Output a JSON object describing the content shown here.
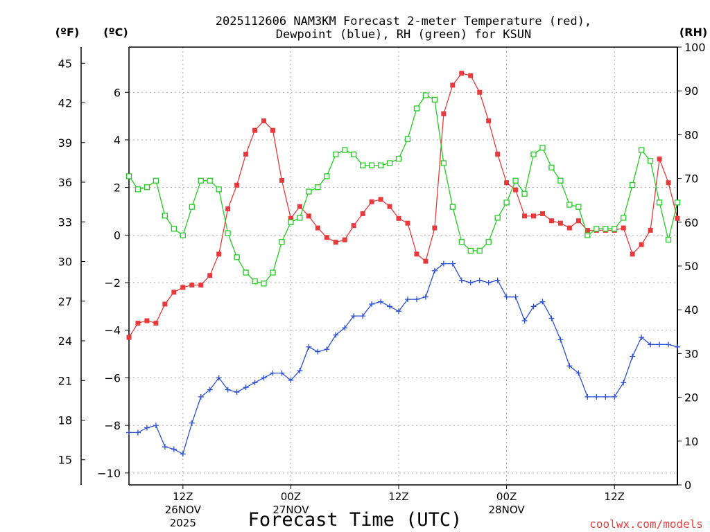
{
  "chart_data": {
    "type": "line",
    "title_line1": "2025112606 NAM3KM Forecast 2-meter Temperature (red),",
    "title_line2": "Dewpoint (blue), RH (green) for KSUN",
    "left_unit_f": "(ºF)",
    "left_unit_c": "(ºC)",
    "right_unit": "(RH)",
    "xlabel": "Forecast Time (UTC)",
    "credit": "coolwx.com/models",
    "x_range": [
      6,
      67
    ],
    "celsius_axis": {
      "ylim": [
        -10.5,
        7.9
      ],
      "ticks": [
        {
          "v": 6,
          "label": "6"
        },
        {
          "v": 4,
          "label": "4"
        },
        {
          "v": 2,
          "label": "2"
        },
        {
          "v": 0,
          "label": "0"
        },
        {
          "v": -2,
          "label": "−2"
        },
        {
          "v": -4,
          "label": "−4"
        },
        {
          "v": -6,
          "label": "−6"
        },
        {
          "v": -8,
          "label": "−8"
        },
        {
          "v": -10,
          "label": "−10"
        }
      ]
    },
    "fahrenheit_ticks": [
      {
        "v": 45,
        "label": "45"
      },
      {
        "v": 42,
        "label": "42"
      },
      {
        "v": 39,
        "label": "39"
      },
      {
        "v": 36,
        "label": "36"
      },
      {
        "v": 33,
        "label": "33"
      },
      {
        "v": 30,
        "label": "30"
      },
      {
        "v": 27,
        "label": "27"
      },
      {
        "v": 24,
        "label": "24"
      },
      {
        "v": 21,
        "label": "21"
      },
      {
        "v": 18,
        "label": "18"
      },
      {
        "v": 15,
        "label": "15"
      }
    ],
    "rh_axis": {
      "ylim": [
        0,
        100
      ],
      "ticks": [
        {
          "v": 100,
          "label": "100"
        },
        {
          "v": 90,
          "label": "90"
        },
        {
          "v": 80,
          "label": "80"
        },
        {
          "v": 70,
          "label": "70"
        },
        {
          "v": 60,
          "label": "60"
        },
        {
          "v": 50,
          "label": "50"
        },
        {
          "v": 40,
          "label": "40"
        },
        {
          "v": 30,
          "label": "30"
        },
        {
          "v": 20,
          "label": "20"
        },
        {
          "v": 10,
          "label": "10"
        },
        {
          "v": 0,
          "label": "0"
        }
      ]
    },
    "x_ticks": [
      {
        "x": 12,
        "label": "12Z",
        "label2": "26NOV",
        "label3": "2025"
      },
      {
        "x": 24,
        "label": "00Z",
        "label2": "27NOV",
        "label3": ""
      },
      {
        "x": 36,
        "label": "12Z",
        "label2": "",
        "label3": ""
      },
      {
        "x": 48,
        "label": "00Z",
        "label2": "28NOV",
        "label3": ""
      },
      {
        "x": 60,
        "label": "12Z",
        "label2": "",
        "label3": ""
      }
    ],
    "x": [
      6,
      7,
      8,
      9,
      10,
      11,
      12,
      13,
      14,
      15,
      16,
      17,
      18,
      19,
      20,
      21,
      22,
      23,
      24,
      25,
      26,
      27,
      28,
      29,
      30,
      31,
      32,
      33,
      34,
      35,
      36,
      37,
      38,
      39,
      40,
      41,
      42,
      43,
      44,
      45,
      46,
      47,
      48,
      49,
      50,
      51,
      52,
      53,
      54,
      55,
      56,
      57,
      58,
      59,
      60,
      61,
      62,
      63,
      64,
      65,
      66,
      67
    ],
    "series": [
      {
        "name": "Temperature",
        "unit": "°C",
        "color": "#e8393c",
        "values": [
          -4.3,
          -3.7,
          -3.6,
          -3.7,
          -2.9,
          -2.4,
          -2.2,
          -2.1,
          -2.1,
          -1.7,
          -0.8,
          1.1,
          2.1,
          3.4,
          4.4,
          4.8,
          4.4,
          2.3,
          0.7,
          1.2,
          0.8,
          0.3,
          -0.1,
          -0.3,
          -0.2,
          0.4,
          0.9,
          1.4,
          1.5,
          1.2,
          0.7,
          0.5,
          -0.8,
          -1.1,
          0.3,
          5.1,
          6.3,
          6.8,
          6.7,
          6.0,
          4.8,
          3.4,
          2.2,
          1.9,
          0.8,
          0.8,
          0.9,
          0.6,
          0.5,
          0.3,
          0.6,
          0.2,
          0.2,
          0.2,
          0.2,
          0.3,
          -0.8,
          -0.4,
          0.2,
          3.2,
          2.2,
          0.7
        ]
      },
      {
        "name": "Dewpoint",
        "unit": "°C",
        "color": "#2b4fd8",
        "values": [
          -8.3,
          -8.3,
          -8.1,
          -8.0,
          -8.9,
          -9.0,
          -9.2,
          -7.9,
          -6.8,
          -6.5,
          -6.0,
          -6.5,
          -6.6,
          -6.4,
          -6.2,
          -6.0,
          -5.8,
          -5.8,
          -6.1,
          -5.7,
          -4.7,
          -4.9,
          -4.8,
          -4.2,
          -3.9,
          -3.4,
          -3.4,
          -2.9,
          -2.8,
          -3.0,
          -3.2,
          -2.7,
          -2.7,
          -2.6,
          -1.5,
          -1.2,
          -1.2,
          -1.9,
          -2.0,
          -1.9,
          -2.0,
          -1.9,
          -2.6,
          -2.6,
          -3.6,
          -3.0,
          -2.8,
          -3.5,
          -4.4,
          -5.5,
          -5.8,
          -6.8,
          -6.8,
          -6.8,
          -6.8,
          -6.2,
          -5.1,
          -4.3,
          -4.6,
          -4.6,
          -4.6,
          -4.7
        ]
      },
      {
        "name": "RH",
        "unit": "%",
        "color": "#22cc22",
        "values": [
          70.5,
          67.5,
          68.0,
          69.5,
          61.5,
          58.5,
          57.0,
          63.5,
          69.5,
          69.5,
          67.5,
          57.5,
          52.0,
          48.5,
          46.5,
          46.0,
          48.5,
          55.5,
          60.0,
          61.0,
          67.0,
          68.0,
          70.5,
          75.5,
          76.5,
          75.5,
          73.0,
          73.0,
          73.0,
          73.5,
          74.5,
          79.0,
          86.0,
          89.0,
          88.0,
          73.5,
          63.5,
          55.5,
          53.5,
          53.5,
          55.5,
          61.0,
          64.5,
          69.5,
          66.5,
          75.5,
          77.0,
          72.5,
          69.5,
          64.0,
          63.5,
          57.0,
          58.5,
          58.5,
          58.5,
          61.0,
          68.5,
          76.5,
          74.0,
          64.5,
          56.0,
          64.5
        ]
      }
    ]
  }
}
